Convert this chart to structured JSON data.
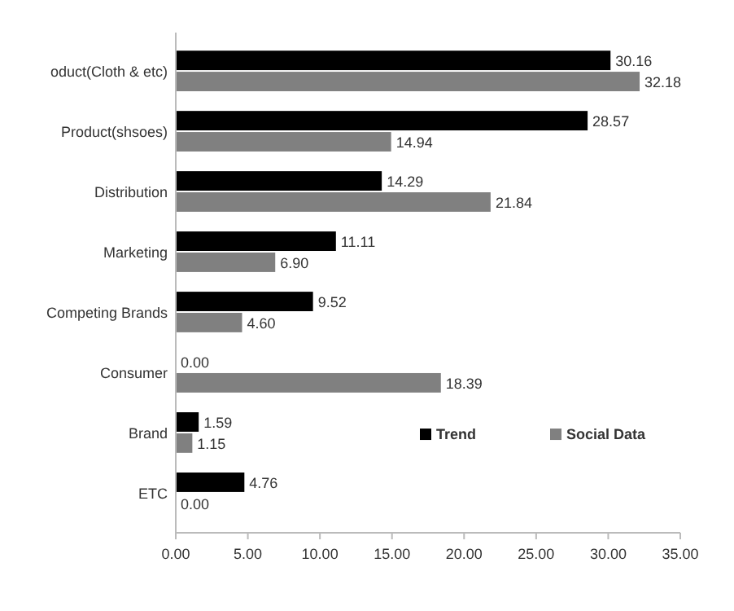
{
  "chart_data": {
    "type": "bar",
    "orientation": "horizontal",
    "categories": [
      "oduct(Cloth & etc)",
      "Product(shsoes)",
      "Distribution",
      "Marketing",
      "Competing Brands",
      "Consumer",
      "Brand",
      "ETC"
    ],
    "series": [
      {
        "name": "Trend",
        "color": "#000000",
        "values": [
          30.16,
          28.57,
          14.29,
          11.11,
          9.52,
          0,
          1.59,
          4.76
        ],
        "value_labels": [
          "30.16",
          "28.57",
          "14.29",
          "11.11",
          "9.52",
          "0.00",
          "1.59",
          "4.76"
        ]
      },
      {
        "name": "Social Data",
        "color": "#808080",
        "values": [
          32.18,
          14.94,
          21.84,
          6.9,
          4.6,
          18.39,
          1.15,
          0
        ],
        "value_labels": [
          "32.18",
          "14.94",
          "21.84",
          "6.90",
          "4.60",
          "18.39",
          "1.15",
          "0.00"
        ]
      }
    ],
    "xlim": [
      0,
      35
    ],
    "xticks": [
      {
        "value": 0,
        "label": "0.00"
      },
      {
        "value": 5,
        "label": "5.00"
      },
      {
        "value": 10,
        "label": "10.00"
      },
      {
        "value": 15,
        "label": "15.00"
      },
      {
        "value": 20,
        "label": "20.00"
      },
      {
        "value": 25,
        "label": "25.00"
      },
      {
        "value": 30,
        "label": "30.00"
      },
      {
        "value": 35,
        "label": "35.00"
      }
    ],
    "grid": false,
    "legend": "bottom right"
  }
}
